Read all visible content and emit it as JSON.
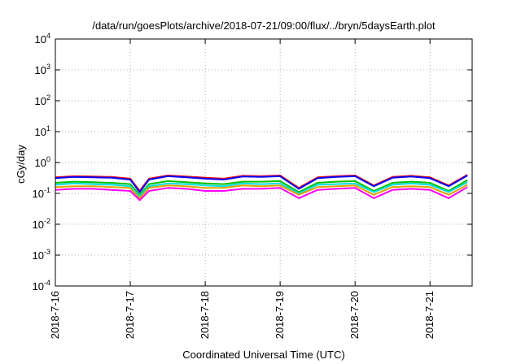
{
  "chart_data": {
    "type": "line",
    "title": "/data/run/goesPlots/archive/2018-07-21/09:00/flux/../bryn/5daysEarth.plot",
    "xlabel": "Coordinated Universal Time (UTC)",
    "ylabel": "cGy/day",
    "y_scale": "log",
    "ylim": [
      0.0001,
      10000
    ],
    "xlim": [
      "2018-07-16T00:00",
      "2018-07-21T13:30"
    ],
    "grid": true,
    "legend": "none",
    "y_ticks": [
      {
        "base": "10",
        "exp": "-4",
        "value": 0.0001
      },
      {
        "base": "10",
        "exp": "-3",
        "value": 0.001
      },
      {
        "base": "10",
        "exp": "-2",
        "value": 0.01
      },
      {
        "base": "10",
        "exp": "-1",
        "value": 0.1
      },
      {
        "base": "10",
        "exp": "0",
        "value": 1
      },
      {
        "base": "10",
        "exp": "1",
        "value": 10
      },
      {
        "base": "10",
        "exp": "2",
        "value": 100
      },
      {
        "base": "10",
        "exp": "3",
        "value": 1000
      },
      {
        "base": "10",
        "exp": "4",
        "value": 10000
      }
    ],
    "x_ticks": [
      {
        "label": "2018-7-16",
        "date": "2018-07-16"
      },
      {
        "label": "2018-7-17",
        "date": "2018-07-17"
      },
      {
        "label": "2018-7-18",
        "date": "2018-07-18"
      },
      {
        "label": "2018-7-19",
        "date": "2018-07-19"
      },
      {
        "label": "2018-7-20",
        "date": "2018-07-20"
      },
      {
        "label": "2018-7-21",
        "date": "2018-07-21"
      }
    ],
    "x": [
      "2018-07-16T00:00",
      "2018-07-16T06:00",
      "2018-07-16T12:00",
      "2018-07-16T18:00",
      "2018-07-17T00:00",
      "2018-07-17T03:00",
      "2018-07-17T06:00",
      "2018-07-17T12:00",
      "2018-07-17T18:00",
      "2018-07-18T00:00",
      "2018-07-18T06:00",
      "2018-07-18T12:00",
      "2018-07-18T18:00",
      "2018-07-19T00:00",
      "2018-07-19T06:00",
      "2018-07-19T12:00",
      "2018-07-19T18:00",
      "2018-07-20T00:00",
      "2018-07-20T06:00",
      "2018-07-20T12:00",
      "2018-07-20T18:00",
      "2018-07-21T00:00",
      "2018-07-21T06:00",
      "2018-07-21T12:00"
    ],
    "series": [
      {
        "color": "#ff0000",
        "values": [
          0.33,
          0.36,
          0.35,
          0.34,
          0.3,
          0.12,
          0.3,
          0.38,
          0.35,
          0.32,
          0.3,
          0.37,
          0.36,
          0.38,
          0.15,
          0.33,
          0.36,
          0.38,
          0.18,
          0.34,
          0.37,
          0.33,
          0.18,
          0.4
        ]
      },
      {
        "color": "#0000ff",
        "values": [
          0.31,
          0.34,
          0.33,
          0.32,
          0.28,
          0.11,
          0.28,
          0.36,
          0.33,
          0.3,
          0.28,
          0.35,
          0.34,
          0.36,
          0.14,
          0.31,
          0.34,
          0.36,
          0.17,
          0.32,
          0.35,
          0.31,
          0.17,
          0.38
        ]
      },
      {
        "color": "#00c000",
        "values": [
          0.22,
          0.24,
          0.23,
          0.22,
          0.2,
          0.09,
          0.2,
          0.25,
          0.23,
          0.21,
          0.2,
          0.24,
          0.24,
          0.25,
          0.11,
          0.22,
          0.24,
          0.25,
          0.12,
          0.22,
          0.24,
          0.22,
          0.12,
          0.27
        ]
      },
      {
        "color": "#00e0e0",
        "values": [
          0.19,
          0.21,
          0.2,
          0.19,
          0.17,
          0.08,
          0.17,
          0.21,
          0.2,
          0.18,
          0.17,
          0.21,
          0.2,
          0.21,
          0.1,
          0.19,
          0.2,
          0.21,
          0.11,
          0.19,
          0.21,
          0.19,
          0.11,
          0.23
        ]
      },
      {
        "color": "#e0a000",
        "values": [
          0.16,
          0.17,
          0.17,
          0.16,
          0.15,
          0.07,
          0.15,
          0.18,
          0.17,
          0.15,
          0.15,
          0.18,
          0.17,
          0.18,
          0.09,
          0.16,
          0.17,
          0.18,
          0.09,
          0.16,
          0.17,
          0.16,
          0.09,
          0.19
        ]
      },
      {
        "color": "#ff00ff",
        "values": [
          0.13,
          0.14,
          0.14,
          0.13,
          0.12,
          0.06,
          0.12,
          0.15,
          0.14,
          0.12,
          0.12,
          0.14,
          0.14,
          0.15,
          0.07,
          0.13,
          0.14,
          0.15,
          0.07,
          0.13,
          0.14,
          0.13,
          0.07,
          0.16
        ]
      }
    ]
  }
}
